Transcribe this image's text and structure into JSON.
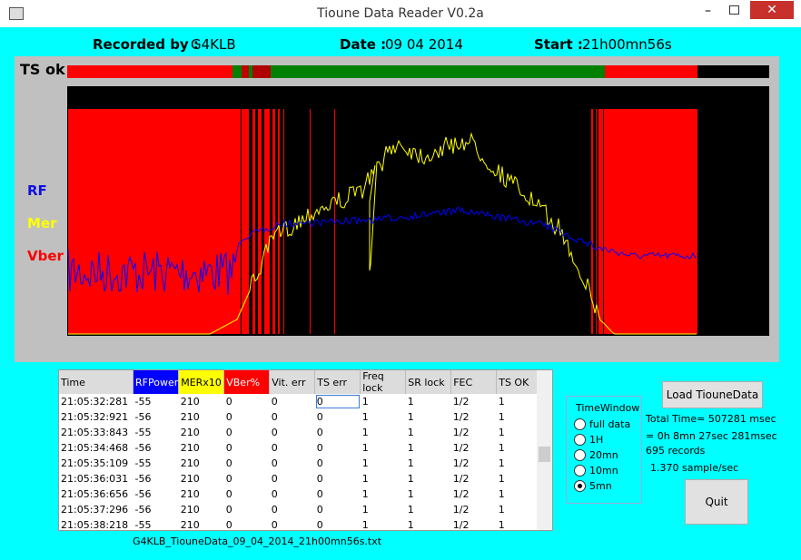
{
  "window": {
    "title": "Tioune Data Reader V0.2a"
  },
  "header": {
    "recorded_label": "Recorded by :",
    "recorded_value": "G4KLB",
    "date_label": "Date :",
    "date_value": "09 04 2014",
    "start_label": "Start :",
    "start_value": "21h00mn56s"
  },
  "chart": {
    "ts_ok": "TS ok",
    "rf": "RF",
    "mer": "Mer",
    "vber": "Vber"
  },
  "table": {
    "columns": [
      "Time",
      "RFPower",
      "MERx10",
      "VBer%",
      "Vit. err",
      "TS err",
      "Freq lock",
      "SR lock",
      "FEC",
      "TS OK"
    ],
    "rows": [
      [
        "21:05:32:281",
        "-55",
        "210",
        "0",
        "0",
        "0",
        "1",
        "1",
        "1/2",
        "1"
      ],
      [
        "21:05:32:921",
        "-56",
        "210",
        "0",
        "0",
        "0",
        "1",
        "1",
        "1/2",
        "1"
      ],
      [
        "21:05:33:843",
        "-55",
        "210",
        "0",
        "0",
        "0",
        "1",
        "1",
        "1/2",
        "1"
      ],
      [
        "21:05:34:468",
        "-56",
        "210",
        "0",
        "0",
        "0",
        "1",
        "1",
        "1/2",
        "1"
      ],
      [
        "21:05:35:109",
        "-55",
        "210",
        "0",
        "0",
        "0",
        "1",
        "1",
        "1/2",
        "1"
      ],
      [
        "21:05:36:031",
        "-56",
        "210",
        "0",
        "0",
        "0",
        "1",
        "1",
        "1/2",
        "1"
      ],
      [
        "21:05:36:656",
        "-56",
        "210",
        "0",
        "0",
        "0",
        "1",
        "1",
        "1/2",
        "1"
      ],
      [
        "21:05:37:296",
        "-56",
        "210",
        "0",
        "0",
        "0",
        "1",
        "1",
        "1/2",
        "1"
      ],
      [
        "21:05:38:218",
        "-55",
        "210",
        "0",
        "0",
        "0",
        "1",
        "1",
        "1/2",
        "1"
      ]
    ]
  },
  "time_window": {
    "title": "TimeWindow",
    "options": [
      "full data",
      "1H",
      "20mn",
      "10mn",
      "5mn"
    ],
    "selected": 4
  },
  "load_button": "Load TiouneData",
  "stats": [
    "Total Time= 507281 msec",
    "= 0h 8mn 27sec 281msec",
    "695 records",
    "1.370 sample/sec"
  ],
  "quit_button": "Quit",
  "filename": "G4KLB_TiouneData_09_04_2014_21h00mn56s.txt"
}
